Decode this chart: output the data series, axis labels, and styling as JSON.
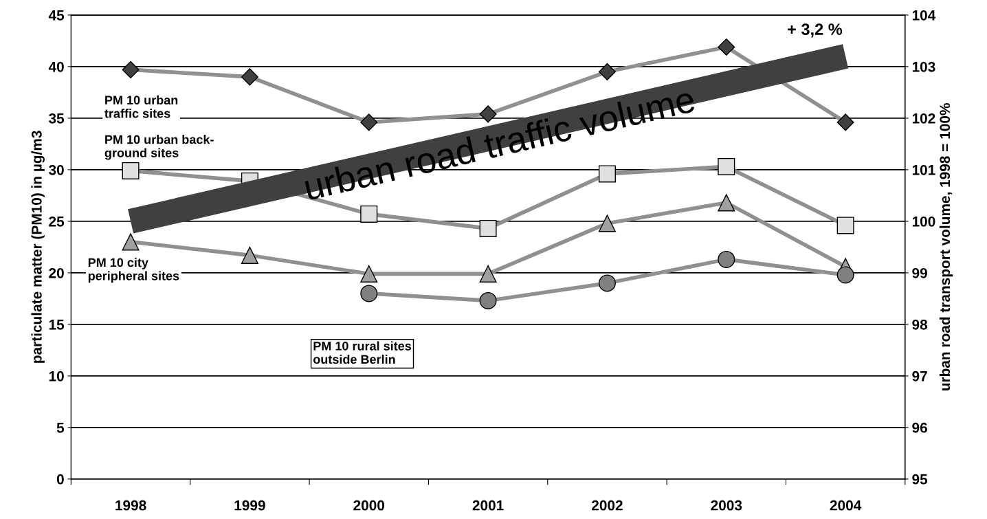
{
  "chart_data": {
    "type": "line",
    "ylabel": "particulate matter (PM10) in µg/m3",
    "y2label": "urban road transport volume, 1998 = 100%",
    "categories": [
      "1998",
      "1999",
      "2000",
      "2001",
      "2002",
      "2003",
      "2004"
    ],
    "ylim": [
      0,
      45
    ],
    "yticks": [
      0,
      5,
      10,
      15,
      20,
      25,
      30,
      35,
      40,
      45
    ],
    "y2lim": [
      95,
      104
    ],
    "y2ticks": [
      95,
      96,
      97,
      98,
      99,
      100,
      101,
      102,
      103,
      104
    ],
    "grid": "y",
    "legend": false,
    "series": [
      {
        "name": "PM 10 urban\ntraffic sites",
        "color": "#404040",
        "marker": "diamond",
        "values": [
          39.7,
          39.0,
          34.6,
          35.4,
          39.5,
          41.9,
          34.6
        ]
      },
      {
        "name": "PM 10 urban back-\nground sites",
        "color": "#e0e0e0",
        "marker": "square",
        "values": [
          29.9,
          28.9,
          25.7,
          24.3,
          29.6,
          30.3,
          24.6
        ]
      },
      {
        "name": "PM 10 city\nperipheral sites",
        "color": "#a0a0a0",
        "marker": "triangle",
        "values": [
          23.0,
          21.7,
          19.9,
          19.9,
          24.8,
          26.8,
          20.6
        ]
      },
      {
        "name": "PM 10 rural sites\noutside Berlin",
        "color": "#808080",
        "marker": "circle",
        "values": [
          null,
          null,
          18.0,
          17.3,
          19.0,
          21.3,
          19.8
        ]
      },
      {
        "name": "urban road traffic volume",
        "type": "line",
        "axis": "y2",
        "color": "#404040",
        "values": [
          100,
          null,
          null,
          null,
          null,
          null,
          103.2
        ]
      }
    ],
    "annotations": [
      "+ 3,2 %"
    ]
  }
}
